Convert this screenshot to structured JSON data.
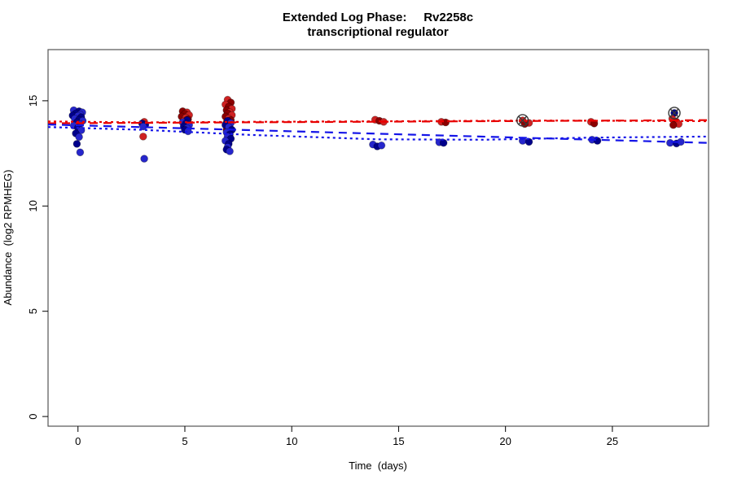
{
  "chart_data": {
    "type": "scatter",
    "title": "Extended Log Phase:     Rv2258c",
    "subtitle": "transcriptional regulator",
    "xlabel": "Time  (days)",
    "ylabel": "Abundance  (log2 RPMHEG)",
    "x_ticks": [
      0,
      5,
      10,
      15,
      20,
      25
    ],
    "y_ticks": [
      0,
      5,
      10,
      15
    ],
    "xlim": [
      -1.4,
      29.5
    ],
    "ylim": [
      -0.46,
      17.43
    ],
    "grid": false,
    "legend": "none",
    "colors": {
      "r": "#cf2222",
      "dr": "#8b0000",
      "b": "#2626cc",
      "n": "#00008b",
      "line_red": "#e80000",
      "line_blue": "#1414e8",
      "marker": "#3a3a3a",
      "frame": "#555555",
      "tick": "#000000"
    },
    "points": [
      [
        -0.2,
        14.55,
        "b",
        0
      ],
      [
        0.05,
        14.5,
        "n",
        0
      ],
      [
        0.2,
        14.45,
        "b",
        0
      ],
      [
        -0.1,
        14.4,
        "n",
        0
      ],
      [
        0.1,
        14.35,
        "b",
        0
      ],
      [
        -0.25,
        14.3,
        "n",
        0
      ],
      [
        0.0,
        14.28,
        "b",
        0
      ],
      [
        0.15,
        14.22,
        "n",
        0
      ],
      [
        -0.15,
        14.15,
        "b",
        0
      ],
      [
        0.05,
        14.1,
        "n",
        0
      ],
      [
        0.22,
        14.05,
        "b",
        0
      ],
      [
        -0.05,
        13.98,
        "n",
        0
      ],
      [
        0.1,
        13.9,
        "b",
        0
      ],
      [
        -0.2,
        13.82,
        "b",
        0
      ],
      [
        0.0,
        13.72,
        "n",
        0
      ],
      [
        0.15,
        13.6,
        "b",
        0
      ],
      [
        -0.1,
        13.45,
        "n",
        0
      ],
      [
        0.05,
        13.28,
        "b",
        0
      ],
      [
        -0.05,
        12.95,
        "n",
        0
      ],
      [
        0.1,
        12.55,
        "b",
        0
      ],
      [
        3.1,
        14.0,
        "r",
        0
      ],
      [
        3.0,
        13.92,
        "n",
        0
      ],
      [
        3.15,
        13.86,
        "n",
        0
      ],
      [
        3.05,
        13.78,
        "b",
        0
      ],
      [
        3.05,
        13.3,
        "r",
        0
      ],
      [
        3.1,
        12.25,
        "b",
        0
      ],
      [
        4.9,
        14.5,
        "dr",
        0
      ],
      [
        5.1,
        14.45,
        "r",
        0
      ],
      [
        5.0,
        14.38,
        "dr",
        0
      ],
      [
        5.2,
        14.32,
        "r",
        0
      ],
      [
        4.85,
        14.25,
        "dr",
        0
      ],
      [
        5.05,
        14.2,
        "r",
        0
      ],
      [
        5.15,
        14.12,
        "dr",
        0
      ],
      [
        4.95,
        14.05,
        "r",
        0
      ],
      [
        5.1,
        14.08,
        "n",
        0
      ],
      [
        4.9,
        13.98,
        "b",
        0
      ],
      [
        5.05,
        13.92,
        "n",
        0
      ],
      [
        5.2,
        13.85,
        "b",
        0
      ],
      [
        4.95,
        13.78,
        "n",
        0
      ],
      [
        5.1,
        13.7,
        "b",
        0
      ],
      [
        5.0,
        13.62,
        "n",
        0
      ],
      [
        5.15,
        13.55,
        "b",
        0
      ],
      [
        7.0,
        15.05,
        "r",
        0
      ],
      [
        7.15,
        14.92,
        "dr",
        0
      ],
      [
        6.9,
        14.82,
        "r",
        0
      ],
      [
        7.05,
        14.72,
        "dr",
        0
      ],
      [
        7.2,
        14.62,
        "r",
        0
      ],
      [
        6.95,
        14.55,
        "dr",
        0
      ],
      [
        7.1,
        14.46,
        "r",
        0
      ],
      [
        7.0,
        14.4,
        "dr",
        0
      ],
      [
        7.2,
        14.32,
        "r",
        0
      ],
      [
        6.9,
        14.25,
        "dr",
        0
      ],
      [
        7.05,
        14.16,
        "r",
        0
      ],
      [
        7.15,
        14.08,
        "dr",
        0
      ],
      [
        6.95,
        13.98,
        "r",
        0
      ],
      [
        7.05,
        13.88,
        "dr",
        0
      ],
      [
        7.1,
        13.72,
        "r",
        0
      ],
      [
        6.95,
        13.62,
        "dr",
        0
      ],
      [
        7.0,
        14.05,
        "n",
        0
      ],
      [
        7.15,
        13.95,
        "b",
        0
      ],
      [
        6.9,
        13.85,
        "n",
        0
      ],
      [
        7.05,
        13.75,
        "b",
        0
      ],
      [
        7.2,
        13.62,
        "n",
        0
      ],
      [
        6.95,
        13.5,
        "b",
        0
      ],
      [
        7.1,
        13.4,
        "n",
        0
      ],
      [
        7.0,
        13.3,
        "b",
        0
      ],
      [
        7.15,
        13.2,
        "n",
        0
      ],
      [
        6.9,
        13.1,
        "b",
        0
      ],
      [
        7.05,
        12.95,
        "n",
        0
      ],
      [
        7.0,
        12.8,
        "b",
        0
      ],
      [
        6.95,
        12.68,
        "n",
        0
      ],
      [
        7.1,
        12.6,
        "b",
        0
      ],
      [
        13.9,
        14.1,
        "r",
        0
      ],
      [
        14.1,
        14.05,
        "dr",
        0
      ],
      [
        14.3,
        14.0,
        "r",
        0
      ],
      [
        13.8,
        12.92,
        "b",
        0
      ],
      [
        14.0,
        12.83,
        "n",
        0
      ],
      [
        14.2,
        12.88,
        "b",
        0
      ],
      [
        17.0,
        14.0,
        "r",
        0
      ],
      [
        17.2,
        13.97,
        "dr",
        0
      ],
      [
        16.9,
        13.03,
        "b",
        0
      ],
      [
        17.1,
        13.0,
        "n",
        0
      ],
      [
        20.8,
        14.07,
        "r",
        1
      ],
      [
        21.1,
        13.95,
        "r",
        0
      ],
      [
        20.9,
        13.9,
        "dr",
        0
      ],
      [
        20.8,
        13.1,
        "b",
        0
      ],
      [
        21.1,
        13.05,
        "n",
        0
      ],
      [
        24.0,
        14.0,
        "r",
        0
      ],
      [
        24.15,
        13.92,
        "dr",
        0
      ],
      [
        24.05,
        13.15,
        "b",
        0
      ],
      [
        24.3,
        13.1,
        "n",
        0
      ],
      [
        27.9,
        14.42,
        "n",
        1
      ],
      [
        27.8,
        14.15,
        "r",
        0
      ],
      [
        28.0,
        14.0,
        "dr",
        0
      ],
      [
        28.1,
        13.9,
        "r",
        0
      ],
      [
        27.85,
        13.85,
        "dr",
        0
      ],
      [
        27.7,
        13.0,
        "b",
        0
      ],
      [
        28.0,
        12.97,
        "n",
        0
      ],
      [
        28.2,
        13.05,
        "b",
        0
      ]
    ],
    "trend_lines": [
      {
        "name": "red-linear-fit-line",
        "color": "line_red",
        "dash": "long",
        "points": [
          [
            -1.4,
            13.93
          ],
          [
            29.5,
            14.08
          ]
        ]
      },
      {
        "name": "red-smooth-fit-line",
        "color": "line_red",
        "dash": "dot",
        "points": [
          [
            -1.4,
            14.02
          ],
          [
            3,
            13.97
          ],
          [
            8,
            14.0
          ],
          [
            15,
            14.03
          ],
          [
            22,
            14.06
          ],
          [
            29.5,
            14.03
          ]
        ]
      },
      {
        "name": "blue-linear-fit-line",
        "color": "line_blue",
        "dash": "long",
        "points": [
          [
            -1.4,
            13.87
          ],
          [
            29.5,
            13.0
          ]
        ]
      },
      {
        "name": "blue-smooth-fit-line",
        "color": "line_blue",
        "dash": "dot",
        "points": [
          [
            -1.4,
            13.75
          ],
          [
            3,
            13.62
          ],
          [
            8,
            13.38
          ],
          [
            14,
            13.17
          ],
          [
            19,
            13.15
          ],
          [
            24,
            13.25
          ],
          [
            29.5,
            13.3
          ]
        ]
      }
    ]
  }
}
